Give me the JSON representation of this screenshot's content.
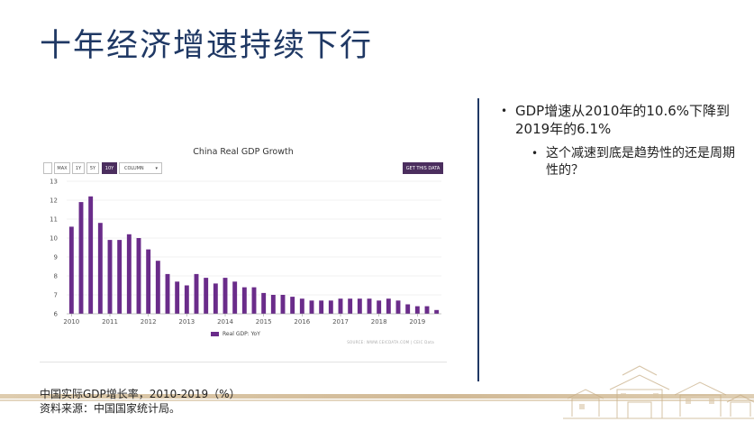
{
  "slide": {
    "title": "十年经济增速持续下行",
    "caption_line1": "中国实际GDP增长率，2010-2019（%）",
    "caption_line2": "资料来源：中国国家统计局。"
  },
  "bullets": {
    "main": "GDP增速从2010年的10.6%下降到2019年的6.1%",
    "sub": "这个减速到底是趋势性的还是周期性的？",
    "marker": "•"
  },
  "toolbar": {
    "max": "MAX",
    "y1": "1Y",
    "y5": "5Y",
    "y10": "10Y",
    "chart_type": "COLUMN",
    "caret": "▾",
    "get_data": "GET THIS DATA"
  },
  "chart_data": {
    "type": "bar",
    "title": "China Real GDP Growth",
    "xlabel": "",
    "ylabel": "",
    "ylim": [
      6,
      13
    ],
    "y_ticks": [
      6,
      7,
      8,
      9,
      10,
      11,
      12,
      13
    ],
    "x_tick_labels": [
      "2010",
      "2011",
      "2012",
      "2013",
      "2014",
      "2015",
      "2016",
      "2017",
      "2018",
      "2019"
    ],
    "series": [
      {
        "name": "Real GDP: YoY",
        "color": "#6a2c8a",
        "values": [
          10.6,
          11.9,
          12.2,
          10.8,
          9.9,
          9.9,
          10.2,
          10.0,
          9.4,
          8.8,
          8.1,
          7.7,
          7.5,
          8.1,
          7.9,
          7.6,
          7.9,
          7.7,
          7.4,
          7.4,
          7.1,
          7.0,
          7.0,
          6.9,
          6.8,
          6.7,
          6.7,
          6.7,
          6.8,
          6.8,
          6.8,
          6.8,
          6.7,
          6.8,
          6.7,
          6.5,
          6.4,
          6.4,
          6.2
        ]
      }
    ],
    "legend_position": "bottom",
    "grid": "horizontal",
    "source": "SOURCE: WWW.CEICDATA.COM | CEIC Data"
  }
}
